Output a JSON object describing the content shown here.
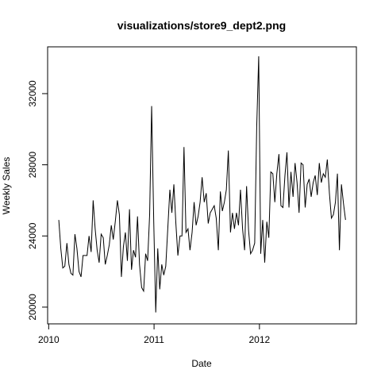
{
  "chart_data": {
    "type": "line",
    "title": "visualizations/store9_dept2.png",
    "x_label": "Date",
    "y_label": "Weekly Sales",
    "x": [
      2010.096,
      2010.115,
      2010.134,
      2010.153,
      2010.173,
      2010.192,
      2010.211,
      2010.23,
      2010.249,
      2010.268,
      2010.288,
      2010.307,
      2010.326,
      2010.345,
      2010.364,
      2010.383,
      2010.403,
      2010.422,
      2010.441,
      2010.46,
      2010.479,
      2010.498,
      2010.518,
      2010.537,
      2010.556,
      2010.575,
      2010.594,
      2010.613,
      2010.632,
      2010.652,
      2010.671,
      2010.69,
      2010.709,
      2010.728,
      2010.747,
      2010.767,
      2010.786,
      2010.805,
      2010.824,
      2010.843,
      2010.862,
      2010.882,
      2010.901,
      2010.92,
      2010.939,
      2010.958,
      2010.977,
      2010.997,
      2011.016,
      2011.035,
      2011.054,
      2011.073,
      2011.092,
      2011.111,
      2011.131,
      2011.15,
      2011.169,
      2011.188,
      2011.207,
      2011.226,
      2011.246,
      2011.265,
      2011.284,
      2011.303,
      2011.322,
      2011.341,
      2011.361,
      2011.38,
      2011.399,
      2011.418,
      2011.437,
      2011.456,
      2011.476,
      2011.495,
      2011.514,
      2011.533,
      2011.552,
      2011.571,
      2011.59,
      2011.61,
      2011.629,
      2011.648,
      2011.667,
      2011.686,
      2011.705,
      2011.725,
      2011.744,
      2011.763,
      2011.782,
      2011.801,
      2011.82,
      2011.84,
      2011.859,
      2011.878,
      2011.897,
      2011.916,
      2011.935,
      2011.955,
      2011.974,
      2011.993,
      2012.012,
      2012.031,
      2012.05,
      2012.07,
      2012.089,
      2012.108,
      2012.127,
      2012.146,
      2012.165,
      2012.185,
      2012.204,
      2012.223,
      2012.242,
      2012.261,
      2012.28,
      2012.299,
      2012.319,
      2012.338,
      2012.357,
      2012.376,
      2012.395,
      2012.414,
      2012.434,
      2012.453,
      2012.472,
      2012.491,
      2012.51,
      2012.529,
      2012.549,
      2012.568,
      2012.587,
      2012.606,
      2012.625,
      2012.644,
      2012.664,
      2012.683,
      2012.702,
      2012.721,
      2012.74,
      2012.759,
      2012.778,
      2012.798,
      2012.817
    ],
    "series": [
      {
        "name": "Weekly Sales",
        "color": "#000000",
        "values": [
          24900,
          23300,
          22200,
          22300,
          23600,
          22400,
          21900,
          21800,
          24100,
          23300,
          22000,
          21700,
          22900,
          22900,
          22900,
          24000,
          23100,
          26000,
          24400,
          23200,
          22500,
          24100,
          23900,
          22400,
          22900,
          23500,
          24600,
          23800,
          24800,
          26000,
          25200,
          21700,
          23400,
          24200,
          22600,
          25500,
          22100,
          23200,
          22800,
          25100,
          22400,
          21100,
          20900,
          23000,
          22600,
          25200,
          31300,
          24800,
          19700,
          23300,
          21000,
          22400,
          21800,
          22300,
          24500,
          26600,
          25300,
          26900,
          24700,
          22900,
          24000,
          24000,
          29000,
          24200,
          24400,
          23200,
          24200,
          25900,
          24600,
          25100,
          25900,
          27300,
          25900,
          26400,
          24700,
          25300,
          25500,
          25700,
          25000,
          23200,
          26500,
          25400,
          25900,
          26600,
          28800,
          24200,
          25300,
          24400,
          25300,
          24600,
          26600,
          24400,
          23200,
          26800,
          24300,
          23000,
          23200,
          23600,
          30100,
          34100,
          23000,
          24900,
          22500,
          24800,
          23900,
          27600,
          27500,
          25900,
          27500,
          28600,
          25700,
          25600,
          27400,
          28700,
          25600,
          27600,
          26200,
          28100,
          27000,
          25300,
          28100,
          28000,
          25600,
          26900,
          27200,
          26200,
          27000,
          27400,
          26300,
          28100,
          27000,
          27500,
          27300,
          28300,
          26400,
          25000,
          25200,
          25900,
          27500,
          23200,
          26900,
          25800,
          24900
        ]
      }
    ],
    "xlim": [
      2009.99,
      2012.92
    ],
    "xticks": [
      2010,
      2011,
      2012
    ],
    "ylim": [
      19060,
      34630
    ],
    "yticks": [
      20000,
      24000,
      28000,
      32000
    ]
  }
}
